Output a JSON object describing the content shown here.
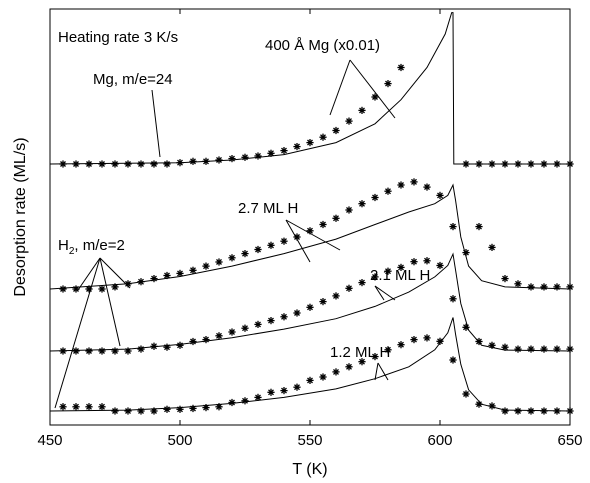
{
  "chart_data": {
    "type": "line",
    "xlabel": "T (K)",
    "ylabel": "Desorption rate (ML/s)",
    "xlim": [
      450,
      650
    ],
    "xticks": [
      "450",
      "500",
      "550",
      "600",
      "650"
    ],
    "y_ticks_shown": false,
    "grid": false,
    "annotations": {
      "heating_rate": "Heating rate 3 K/s",
      "mg_film": "400 Å Mg (x0.01)",
      "mg_signal": "Mg, m/e=24",
      "h2_signal_main": "H",
      "h2_signal_sub": "2",
      "h2_signal_rest": ", m/e=2",
      "cov_27": "2.7 ML H",
      "cov_21": "2.1 ML H",
      "cov_12": "1.2 ML H"
    },
    "traces": [
      {
        "key": "mg",
        "baseline": 0.0,
        "fit_curve": [
          [
            450,
            0
          ],
          [
            500,
            0.01
          ],
          [
            520,
            0.03
          ],
          [
            540,
            0.07
          ],
          [
            560,
            0.16
          ],
          [
            575,
            0.3
          ],
          [
            585,
            0.48
          ],
          [
            595,
            0.72
          ],
          [
            602,
            0.97
          ],
          [
            604.5,
            1.13
          ],
          [
            605,
            1.13
          ],
          [
            605.3,
            0.0
          ],
          [
            650,
            0.0
          ]
        ],
        "markers_x": [
          455,
          460,
          465,
          470,
          475,
          480,
          485,
          490,
          495,
          500,
          505,
          510,
          515,
          520,
          525,
          530,
          535,
          540,
          545,
          550,
          555,
          560,
          565,
          570,
          575,
          580,
          585,
          610,
          615,
          620,
          625,
          630,
          635,
          640,
          645,
          650
        ],
        "markers_y": [
          0,
          0,
          0,
          0,
          0,
          0,
          0,
          0,
          0,
          0.01,
          0.02,
          0.02,
          0.03,
          0.04,
          0.05,
          0.06,
          0.08,
          0.1,
          0.13,
          0.16,
          0.2,
          0.25,
          0.32,
          0.4,
          0.5,
          0.6,
          0.72,
          0,
          0,
          0,
          0,
          0,
          0,
          0,
          0,
          0
        ]
      },
      {
        "key": "h27",
        "baseline": 0.0,
        "fit_curve": [
          [
            450,
            0
          ],
          [
            480,
            0.05
          ],
          [
            500,
            0.12
          ],
          [
            520,
            0.22
          ],
          [
            540,
            0.34
          ],
          [
            560,
            0.48
          ],
          [
            575,
            0.62
          ],
          [
            588,
            0.74
          ],
          [
            598,
            0.82
          ],
          [
            603,
            0.9
          ],
          [
            605,
            1.0
          ],
          [
            606,
            0.85
          ],
          [
            608,
            0.5
          ],
          [
            611,
            0.22
          ],
          [
            616,
            0.08
          ],
          [
            625,
            0.02
          ],
          [
            650,
            0.0
          ]
        ],
        "markers_x": [
          455,
          460,
          465,
          470,
          475,
          480,
          485,
          490,
          495,
          500,
          505,
          510,
          515,
          520,
          525,
          530,
          535,
          540,
          545,
          550,
          555,
          560,
          565,
          570,
          575,
          580,
          585,
          590,
          595,
          600,
          605,
          610,
          615,
          620,
          625,
          630,
          635,
          640,
          645,
          650
        ],
        "markers_y": [
          0,
          0,
          0,
          0,
          0.02,
          0.05,
          0.07,
          0.1,
          0.13,
          0.15,
          0.18,
          0.22,
          0.26,
          0.3,
          0.34,
          0.38,
          0.42,
          0.46,
          0.5,
          0.56,
          0.62,
          0.68,
          0.76,
          0.82,
          0.88,
          0.94,
          1.0,
          1.03,
          0.98,
          0.9,
          0.6,
          0.35,
          0.6,
          0.4,
          0.1,
          0.05,
          0.02,
          0.02,
          0.02,
          0.02
        ]
      },
      {
        "key": "h21",
        "baseline": 0.0,
        "fit_curve": [
          [
            450,
            0
          ],
          [
            480,
            0.02
          ],
          [
            500,
            0.07
          ],
          [
            520,
            0.14
          ],
          [
            540,
            0.23
          ],
          [
            560,
            0.34
          ],
          [
            575,
            0.47
          ],
          [
            588,
            0.62
          ],
          [
            598,
            0.78
          ],
          [
            603,
            0.9
          ],
          [
            605,
            1.02
          ],
          [
            606,
            0.85
          ],
          [
            608,
            0.5
          ],
          [
            611,
            0.22
          ],
          [
            616,
            0.06
          ],
          [
            625,
            0.01
          ],
          [
            650,
            0.0
          ]
        ],
        "markers_x": [
          455,
          460,
          465,
          470,
          475,
          480,
          485,
          490,
          495,
          500,
          505,
          510,
          515,
          520,
          525,
          530,
          535,
          540,
          545,
          550,
          555,
          560,
          565,
          570,
          575,
          580,
          585,
          590,
          595,
          600,
          605,
          610,
          615,
          620,
          625,
          630,
          635,
          640,
          645,
          650
        ],
        "markers_y": [
          0,
          0,
          0,
          0,
          0,
          0,
          0.02,
          0.05,
          0.04,
          0.06,
          0.1,
          0.12,
          0.16,
          0.2,
          0.24,
          0.28,
          0.32,
          0.36,
          0.4,
          0.46,
          0.52,
          0.58,
          0.66,
          0.72,
          0.78,
          0.84,
          0.88,
          0.94,
          0.95,
          0.9,
          0.55,
          0.25,
          0.1,
          0.06,
          0.04,
          0.02,
          0.02,
          0.02,
          0.02,
          0.02
        ]
      },
      {
        "key": "h12",
        "baseline": 0.0,
        "fit_curve": [
          [
            450,
            0
          ],
          [
            480,
            0.01
          ],
          [
            500,
            0.04
          ],
          [
            520,
            0.09
          ],
          [
            540,
            0.16
          ],
          [
            560,
            0.26
          ],
          [
            575,
            0.38
          ],
          [
            588,
            0.52
          ],
          [
            598,
            0.72
          ],
          [
            603,
            0.92
          ],
          [
            605,
            1.1
          ],
          [
            606,
            0.9
          ],
          [
            608,
            0.55
          ],
          [
            611,
            0.25
          ],
          [
            616,
            0.08
          ],
          [
            625,
            0.01
          ],
          [
            650,
            0.0
          ]
        ],
        "markers_x": [
          455,
          460,
          465,
          470,
          475,
          480,
          485,
          490,
          495,
          500,
          505,
          510,
          515,
          520,
          525,
          530,
          535,
          540,
          545,
          550,
          555,
          560,
          565,
          570,
          575,
          580,
          585,
          590,
          595,
          600,
          605,
          610,
          615,
          620,
          625,
          630,
          635,
          640,
          645,
          650
        ],
        "markers_y": [
          0.05,
          0.05,
          0.05,
          0.05,
          0,
          0,
          0,
          0,
          0.02,
          0.02,
          0.03,
          0.04,
          0.05,
          0.1,
          0.12,
          0.16,
          0.22,
          0.24,
          0.28,
          0.36,
          0.4,
          0.46,
          0.52,
          0.58,
          0.64,
          0.72,
          0.78,
          0.84,
          0.86,
          0.82,
          0.6,
          0.2,
          0.08,
          0.06,
          0,
          0,
          0,
          0,
          0,
          0
        ]
      }
    ]
  }
}
